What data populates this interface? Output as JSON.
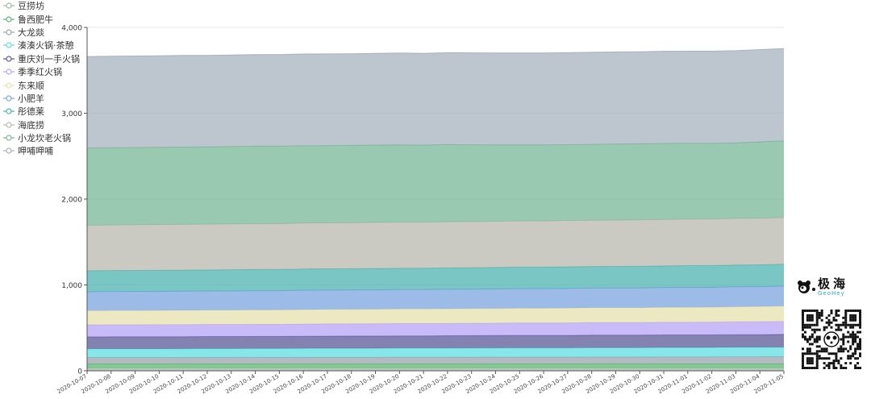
{
  "chart_data": {
    "type": "area",
    "stacked": true,
    "x": [
      "2020-10-07",
      "2020-10-08",
      "2020-10-09",
      "2020-10-10",
      "2020-10-11",
      "2020-10-12",
      "2020-10-13",
      "2020-10-14",
      "2020-10-15",
      "2020-10-16",
      "2020-10-17",
      "2020-10-18",
      "2020-10-19",
      "2020-10-20",
      "2020-10-21",
      "2020-10-22",
      "2020-10-23",
      "2020-10-24",
      "2020-10-25",
      "2020-10-26",
      "2020-10-27",
      "2020-10-28",
      "2020-10-29",
      "2020-10-30",
      "2020-10-31",
      "2020-11-01",
      "2020-11-02",
      "2020-11-03",
      "2020-11-04",
      "2020-11-05"
    ],
    "ylim": [
      0,
      4000
    ],
    "yticks": [
      0,
      1000,
      2000,
      3000,
      4000
    ],
    "ytick_labels": [
      "0",
      "1,000",
      "2,000",
      "3,000",
      "4,000"
    ],
    "grid": true,
    "legend_position": "top-left",
    "series": [
      {
        "name": "豆捞坊",
        "color": "#9bb9a4",
        "values": [
          35,
          35,
          35,
          35,
          35,
          35,
          35,
          35,
          35,
          35,
          35,
          35,
          35,
          35,
          35,
          35,
          35,
          35,
          35,
          35,
          35,
          35,
          35,
          35,
          35,
          35,
          35,
          35,
          35,
          35
        ]
      },
      {
        "name": "鲁西肥牛",
        "color": "#58b96e",
        "values": [
          45,
          45,
          45,
          45,
          45,
          45,
          45,
          45,
          45,
          45,
          45,
          45,
          45,
          45,
          45,
          45,
          45,
          45,
          45,
          45,
          45,
          45,
          45,
          45,
          45,
          45,
          45,
          45,
          45,
          45
        ]
      },
      {
        "name": "大龙燚",
        "color": "#9aa3ae",
        "values": [
          75,
          75,
          75,
          75,
          75,
          76,
          76,
          76,
          76,
          78,
          78,
          78,
          78,
          79,
          79,
          79,
          79,
          80,
          80,
          80,
          80,
          81,
          81,
          81,
          82,
          82,
          82,
          83,
          83,
          84
        ]
      },
      {
        "name": "湊湊火锅·茶憩",
        "color": "#5fdde0",
        "values": [
          100,
          101,
          101,
          101,
          102,
          102,
          102,
          103,
          103,
          103,
          104,
          104,
          104,
          105,
          105,
          105,
          106,
          106,
          107,
          107,
          107,
          108,
          108,
          108,
          109,
          109,
          109,
          110,
          110,
          111
        ]
      },
      {
        "name": "重庆刘一手火锅",
        "color": "#5a5897",
        "values": [
          140,
          140,
          140,
          140,
          140,
          141,
          141,
          141,
          141,
          142,
          142,
          143,
          143,
          143,
          143,
          144,
          144,
          144,
          145,
          145,
          145,
          146,
          146,
          146,
          147,
          147,
          147,
          148,
          148,
          149
        ]
      },
      {
        "name": "季季红火锅",
        "color": "#b5a4f6",
        "values": [
          140,
          140,
          140,
          141,
          141,
          141,
          141,
          142,
          142,
          142,
          143,
          143,
          143,
          144,
          144,
          144,
          145,
          145,
          146,
          146,
          146,
          147,
          147,
          147,
          148,
          148,
          149,
          150,
          151,
          152
        ]
      },
      {
        "name": "东来顺",
        "color": "#e6e0ae",
        "values": [
          165,
          165,
          166,
          166,
          166,
          166,
          167,
          167,
          167,
          168,
          168,
          168,
          169,
          169,
          169,
          170,
          170,
          170,
          171,
          171,
          172,
          172,
          172,
          173,
          173,
          174,
          174,
          175,
          176,
          177
        ]
      },
      {
        "name": "小肥羊",
        "color": "#7ba5df",
        "values": [
          220,
          222,
          222,
          222,
          223,
          223,
          223,
          224,
          224,
          225,
          225,
          225,
          226,
          226,
          226,
          227,
          227,
          228,
          228,
          228,
          229,
          229,
          230,
          230,
          230,
          231,
          231,
          232,
          232,
          233
        ]
      },
      {
        "name": "彤德莱",
        "color": "#4cb3b0",
        "values": [
          245,
          245,
          245,
          246,
          246,
          246,
          247,
          247,
          247,
          248,
          248,
          248,
          249,
          249,
          249,
          250,
          250,
          251,
          251,
          251,
          252,
          252,
          252,
          253,
          253,
          254,
          254,
          255,
          255,
          256
        ]
      },
      {
        "name": "海底捞",
        "color": "#b9b8ad",
        "values": [
          530,
          530,
          532,
          532,
          532,
          533,
          533,
          533,
          534,
          535,
          535,
          535,
          536,
          536,
          536,
          537,
          537,
          537,
          538,
          538,
          539,
          539,
          539,
          540,
          540,
          541,
          541,
          542,
          542,
          543
        ]
      },
      {
        "name": "小龙坎老火锅",
        "color": "#77b795",
        "values": [
          900,
          901,
          900,
          900,
          902,
          900,
          902,
          903,
          903,
          901,
          900,
          901,
          901,
          900,
          898,
          899,
          895,
          890,
          885,
          885,
          884,
          884,
          887,
          886,
          887,
          884,
          883,
          880,
          890,
          893
        ]
      },
      {
        "name": "呷哺呷哺",
        "color": "#a7b1bf",
        "values": [
          1065,
          1065,
          1066,
          1066,
          1066,
          1066,
          1067,
          1067,
          1067,
          1068,
          1068,
          1068,
          1069,
          1069,
          1069,
          1070,
          1070,
          1070,
          1071,
          1071,
          1071,
          1072,
          1072,
          1072,
          1073,
          1073,
          1073,
          1074,
          1074,
          1075
        ]
      }
    ]
  },
  "brand": {
    "name": "极海",
    "sub": "GeoHey"
  }
}
